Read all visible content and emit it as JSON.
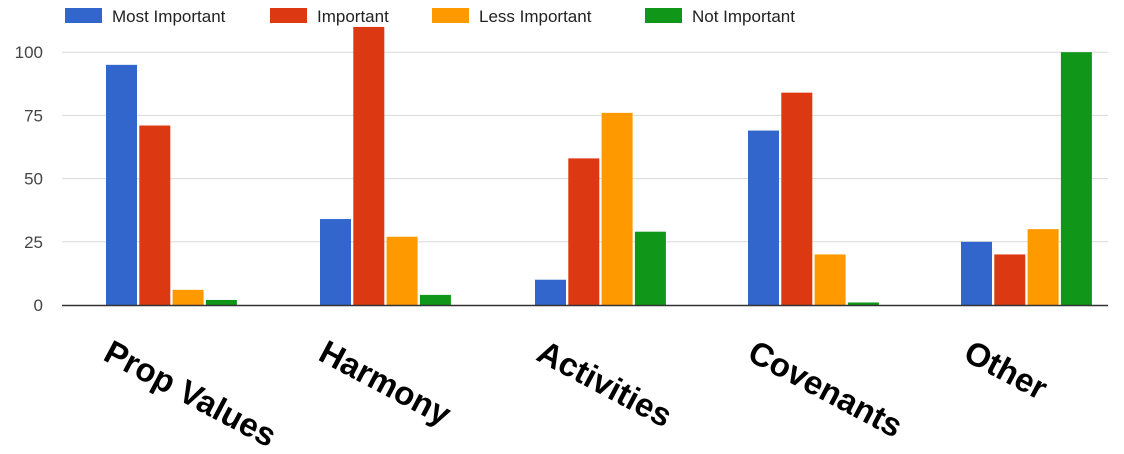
{
  "chart_data": {
    "type": "bar",
    "title": "",
    "xlabel": "",
    "ylabel": "",
    "categories": [
      "Prop Values",
      "Harmony",
      "Activities",
      "Covenants",
      "Other"
    ],
    "series": [
      {
        "name": "Most Important",
        "color": "#3366cc",
        "values": [
          95,
          34,
          10,
          69,
          25
        ]
      },
      {
        "name": "Important",
        "color": "#dc3912",
        "values": [
          71,
          110,
          58,
          84,
          20
        ]
      },
      {
        "name": "Less Important",
        "color": "#ff9900",
        "values": [
          6,
          27,
          76,
          20,
          30
        ]
      },
      {
        "name": "Not Important",
        "color": "#109618",
        "values": [
          2,
          4,
          29,
          1,
          100
        ]
      }
    ],
    "ylim": [
      0,
      110
    ],
    "yticks": [
      0,
      25,
      50,
      75,
      100
    ],
    "grid": true,
    "legend_position": "top-left"
  }
}
